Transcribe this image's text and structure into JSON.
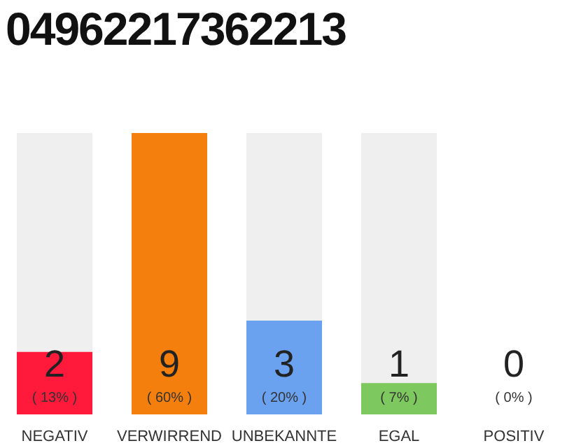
{
  "chart_data": {
    "type": "bar",
    "title": "04962217362213",
    "categories": [
      "NEGATIV",
      "VERWIRREND",
      "UNBEKANNTE",
      "EGAL",
      "POSITIV"
    ],
    "values": [
      2,
      9,
      3,
      1,
      0
    ],
    "colors": [
      "#ff1a3c",
      "#f57f0c",
      "#6ba2f0",
      "#7ec95f",
      "#d9d9d9"
    ],
    "value_labels": [
      "2 ( 13% )",
      "9 ( 60% )",
      "3 ( 20% )",
      "1 ( 7% )",
      "0 ( 0% )"
    ],
    "grid": false,
    "legend": false
  }
}
